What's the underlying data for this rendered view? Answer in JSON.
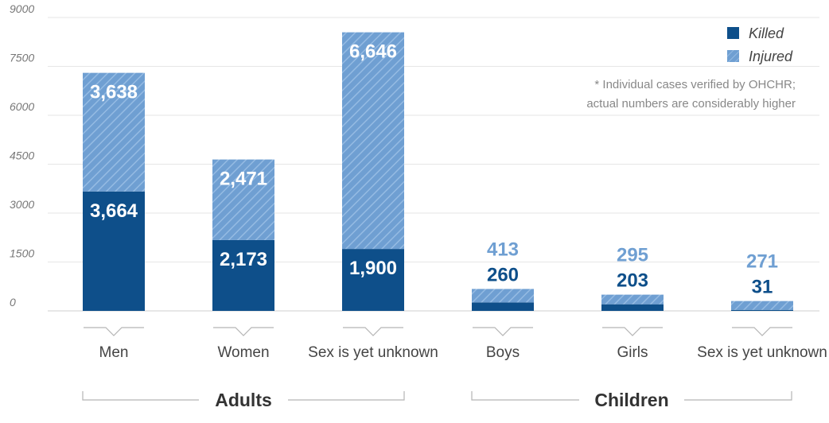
{
  "chart_data": {
    "type": "bar",
    "stacked": true,
    "categories": [
      "Men",
      "Women",
      "Sex is yet unknown",
      "Boys",
      "Girls",
      "Sex is yet unknown"
    ],
    "groups": [
      {
        "label": "Adults",
        "categories": [
          0,
          1,
          2
        ]
      },
      {
        "label": "Children",
        "categories": [
          3,
          4,
          5
        ]
      }
    ],
    "series": [
      {
        "name": "Killed",
        "color": "#0e4f8a",
        "values": [
          3664,
          2173,
          1900,
          260,
          203,
          31
        ],
        "labels": [
          "3,664",
          "2,173",
          "1,900",
          "260",
          "203",
          "31"
        ]
      },
      {
        "name": "Injured",
        "color": "#6f9fd2",
        "values": [
          3638,
          2471,
          6646,
          413,
          295,
          271
        ],
        "labels": [
          "3,638",
          "2,471",
          "6,646",
          "413",
          "295",
          "271"
        ]
      }
    ],
    "yticks": [
      0,
      1500,
      3000,
      4500,
      6000,
      7500,
      9000
    ],
    "ylim": [
      0,
      9000
    ],
    "grid": true,
    "legend_position": "top-right",
    "note_lines": [
      "* Individual cases verified by OHCHR;",
      "actual numbers are considerably higher"
    ],
    "title": "",
    "xlabel": "",
    "ylabel": ""
  }
}
